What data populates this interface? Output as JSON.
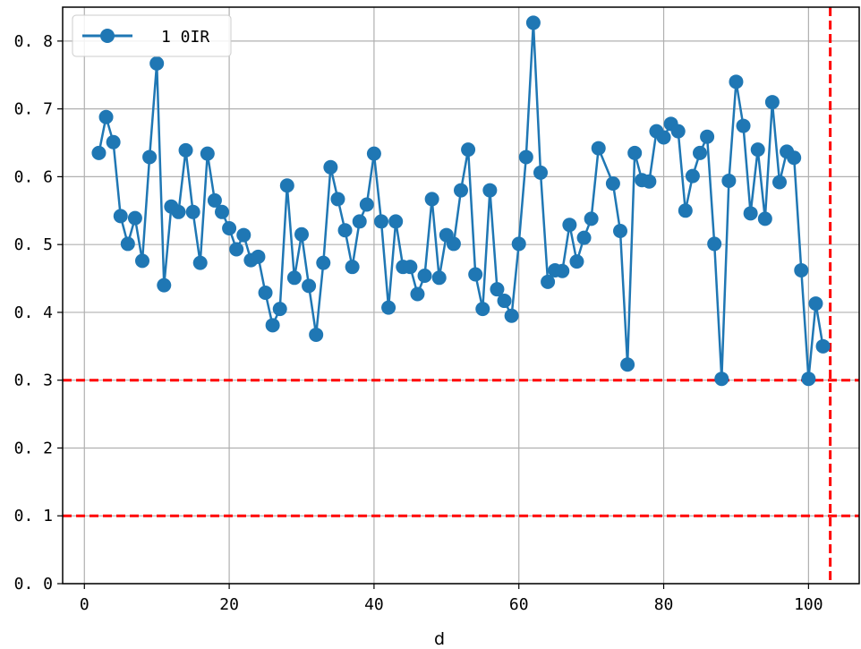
{
  "chart_data": {
    "type": "line",
    "title": "",
    "xlabel": "d",
    "ylabel": "",
    "xlim": [
      -3,
      107
    ],
    "ylim": [
      0,
      0.85
    ],
    "x_ticks": [
      0,
      20,
      40,
      60,
      80,
      100
    ],
    "x_tick_labels": [
      "0",
      "20",
      "40",
      "60",
      "80",
      "100"
    ],
    "y_ticks": [
      0,
      0.1,
      0.2,
      0.3,
      0.4,
      0.5,
      0.6,
      0.7,
      0.8
    ],
    "y_tick_labels": [
      "0. 0",
      "0. 1",
      "0. 2",
      "0. 3",
      "0. 4",
      "0. 5",
      "0. 6",
      "0. 7",
      "0. 8"
    ],
    "grid": true,
    "legend_position": "top-left",
    "series": [
      {
        "name": "1 0IR",
        "color": "#1f77b4",
        "marker": "circle",
        "x": [
          2,
          3,
          4,
          5,
          6,
          7,
          8,
          9,
          10,
          11,
          12,
          13,
          14,
          15,
          16,
          17,
          18,
          19,
          20,
          21,
          22,
          23,
          24,
          25,
          26,
          27,
          28,
          29,
          30,
          31,
          32,
          33,
          34,
          35,
          36,
          37,
          38,
          39,
          40,
          41,
          42,
          43,
          44,
          45,
          46,
          47,
          48,
          49,
          50,
          51,
          52,
          53,
          54,
          55,
          56,
          57,
          58,
          59,
          60,
          61,
          62,
          63,
          64,
          65,
          66,
          67,
          68,
          69,
          70,
          71,
          73,
          74,
          75,
          76,
          77,
          78,
          79,
          80,
          81,
          82,
          83,
          84,
          85,
          86,
          87,
          88,
          89,
          90,
          91,
          92,
          93,
          94,
          95,
          96,
          97,
          98,
          99,
          100,
          101,
          102
        ],
        "y": [
          0.635,
          0.688,
          0.651,
          0.542,
          0.501,
          0.539,
          0.476,
          0.629,
          0.767,
          0.44,
          0.556,
          0.548,
          0.639,
          0.548,
          0.473,
          0.634,
          0.565,
          0.548,
          0.524,
          0.493,
          0.514,
          0.477,
          0.482,
          0.429,
          0.381,
          0.405,
          0.587,
          0.451,
          0.515,
          0.439,
          0.367,
          0.473,
          0.614,
          0.567,
          0.521,
          0.467,
          0.534,
          0.559,
          0.634,
          0.534,
          0.407,
          0.534,
          0.467,
          0.467,
          0.427,
          0.454,
          0.567,
          0.451,
          0.514,
          0.501,
          0.58,
          0.64,
          0.456,
          0.405,
          0.58,
          0.434,
          0.417,
          0.395,
          0.501,
          0.629,
          0.827,
          0.606,
          0.445,
          0.462,
          0.461,
          0.529,
          0.475,
          0.51,
          0.538,
          0.642,
          0.59,
          0.52,
          0.323,
          0.635,
          0.595,
          0.593,
          0.667,
          0.658,
          0.678,
          0.667,
          0.55,
          0.601,
          0.635,
          0.659,
          0.501,
          0.302,
          0.594,
          0.74,
          0.675,
          0.546,
          0.64,
          0.538,
          0.71,
          0.592,
          0.637,
          0.628,
          0.462,
          0.302,
          0.413,
          0.35
        ]
      }
    ],
    "reference_lines": {
      "horizontal": [
        0.3,
        0.1
      ],
      "vertical": [
        103
      ],
      "color": "#ff0000",
      "style": "dashed"
    }
  }
}
